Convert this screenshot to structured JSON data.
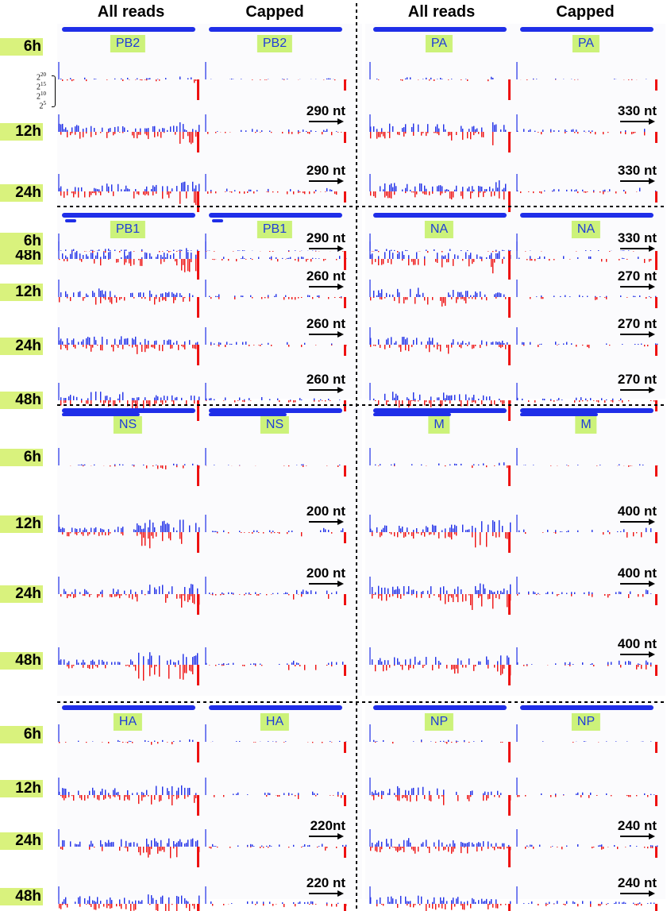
{
  "column_headers": [
    "All reads",
    "Capped",
    "All reads",
    "Capped"
  ],
  "scale_labels": [
    "20",
    "15",
    "10",
    "5"
  ],
  "scale_base": "2",
  "colors": {
    "forward": "#1f2ee8",
    "reverse": "#ee1111",
    "gene_label_bg": "#ccf27a",
    "timepoint_bg": "#d9f27d",
    "background": "#fbfbfd"
  },
  "chart_data": {
    "type": "coverage-tracks",
    "description_axes": "read coverage per segment (log2 scale), forward strand up, reverse strand down",
    "timepoints": [
      "6h",
      "12h",
      "24h",
      "48h"
    ],
    "panels": [
      {
        "segment": "PB2",
        "block": 0,
        "side": "left",
        "nt": [
          "",
          "290 nt",
          "290 nt",
          "290 nt"
        ]
      },
      {
        "segment": "PA",
        "block": 0,
        "side": "right",
        "nt": [
          "",
          "330 nt",
          "330 nt",
          "330 nt"
        ]
      },
      {
        "segment": "PB1",
        "block": 1,
        "side": "left",
        "nt": [
          "",
          "260 nt",
          "260 nt",
          "260 nt"
        ]
      },
      {
        "segment": "NA",
        "block": 1,
        "side": "right",
        "nt": [
          "",
          "270 nt",
          "270 nt",
          "270 nt"
        ]
      },
      {
        "segment": "NS",
        "block": 2,
        "side": "left",
        "nt": [
          "",
          "200 nt",
          "200 nt",
          ""
        ]
      },
      {
        "segment": "M",
        "block": 2,
        "side": "right",
        "nt": [
          "",
          "400 nt",
          "400 nt",
          "400 nt"
        ]
      },
      {
        "segment": "HA",
        "block": 3,
        "side": "left",
        "nt": [
          "",
          "",
          "220nt",
          "220 nt"
        ]
      },
      {
        "segment": "NP",
        "block": 3,
        "side": "right",
        "nt": [
          "",
          "",
          "240 nt",
          "240 nt"
        ]
      }
    ]
  }
}
